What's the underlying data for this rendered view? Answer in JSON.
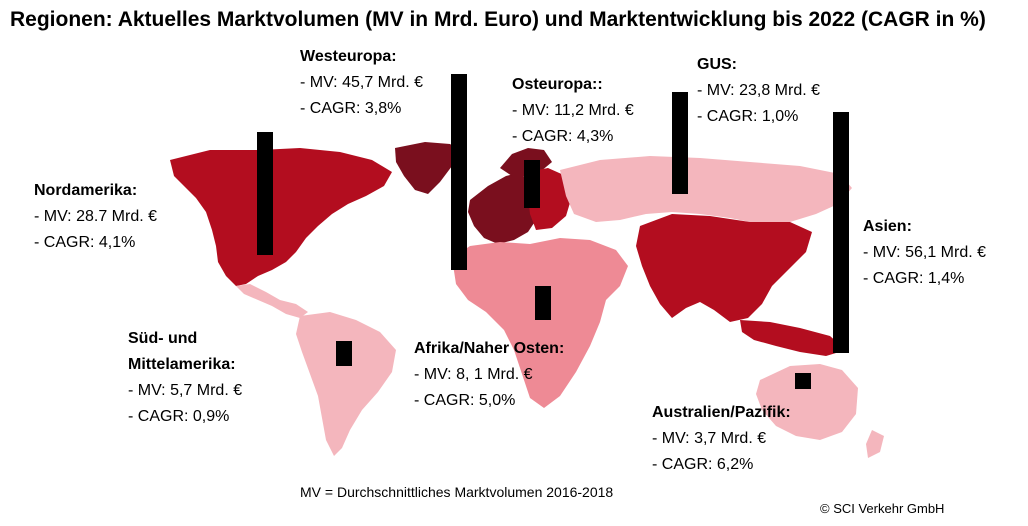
{
  "title": "Regionen: Aktuelles Marktvolumen (MV in Mrd. Euro) und Marktentwicklung bis 2022 (CAGR in %)",
  "colors": {
    "dark": "#7a0f1e",
    "strong": "#b30d1f",
    "medium": "#ee8a95",
    "light": "#f4b6bd",
    "bar": "#000000"
  },
  "regions": {
    "nordamerika": {
      "name": "Nordamerika:",
      "mv": "-  MV: 28.7 Mrd. €",
      "cagr": "-  CAGR: 4,1%",
      "mv_value": 28.7,
      "cagr_value": 4.1
    },
    "westeuropa": {
      "name": "Westeuropa:",
      "mv": "-  MV: 45,7 Mrd. €",
      "cagr": "-  CAGR: 3,8%",
      "mv_value": 45.7,
      "cagr_value": 3.8
    },
    "osteuropa": {
      "name": "Osteuropa::",
      "mv": "-  MV: 11,2 Mrd. €",
      "cagr": "-  CAGR: 4,3%",
      "mv_value": 11.2,
      "cagr_value": 4.3
    },
    "gus": {
      "name": "GUS:",
      "mv": "-  MV: 23,8 Mrd. €",
      "cagr": "-  CAGR: 1,0%",
      "mv_value": 23.8,
      "cagr_value": 1.0
    },
    "asien": {
      "name": "Asien:",
      "mv": "-  MV: 56,1 Mrd. €",
      "cagr": "-  CAGR: 1,4%",
      "mv_value": 56.1,
      "cagr_value": 1.4
    },
    "suedamerika": {
      "name": "Süd- und Mittelamerika:",
      "name_line1": "Süd- und",
      "name_line2": "Mittelamerika:",
      "mv": "-  MV: 5,7 Mrd. €",
      "cagr": "-  CAGR: 0,9%",
      "mv_value": 5.7,
      "cagr_value": 0.9
    },
    "afrika": {
      "name": "Afrika/Naher Osten:",
      "mv": "-  MV: 8, 1 Mrd. €",
      "cagr": "-  CAGR: 5,0%",
      "mv_value": 8.1,
      "cagr_value": 5.0
    },
    "australien": {
      "name": "Australien/Pazifik:",
      "mv": "-  MV: 3,7 Mrd. €",
      "cagr": "-  CAGR: 6,2%",
      "mv_value": 3.7,
      "cagr_value": 6.2
    }
  },
  "footnote": "MV = Durchschnittliches Marktvolumen 2016-2018",
  "copyright": "© SCI Verkehr GmbH"
}
